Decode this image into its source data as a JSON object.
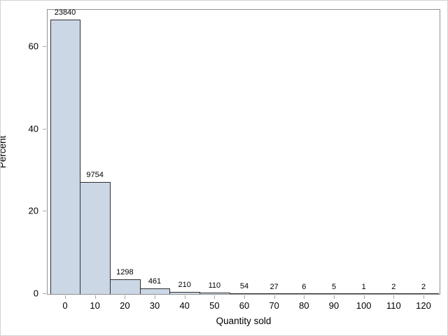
{
  "chart_data": {
    "type": "bar",
    "subtype": "histogram",
    "title": "",
    "xlabel": "Quantity sold",
    "ylabel": "Percent",
    "categories": [
      0,
      10,
      20,
      30,
      40,
      50,
      60,
      70,
      80,
      90,
      100,
      110,
      120
    ],
    "counts": [
      23840,
      9754,
      1298,
      461,
      210,
      110,
      54,
      27,
      6,
      5,
      1,
      2,
      2
    ],
    "count_labels": [
      "23840",
      "9754",
      "1298",
      "461",
      "210",
      "110",
      "54",
      "27",
      "6",
      "5",
      "1",
      "2",
      "2"
    ],
    "values_percent": [
      66.65,
      27.27,
      3.63,
      1.29,
      0.59,
      0.31,
      0.15,
      0.08,
      0.02,
      0.01,
      0.003,
      0.006,
      0.006
    ],
    "bin_width": 10,
    "x_tick_labels": [
      "0",
      "10",
      "20",
      "30",
      "40",
      "50",
      "60",
      "70",
      "80",
      "90",
      "100",
      "110",
      "120"
    ],
    "y_ticks": [
      0,
      20,
      40,
      60
    ],
    "y_tick_labels": [
      "0",
      "20",
      "40",
      "60"
    ],
    "ylim": [
      0,
      69.3
    ],
    "grid": "off",
    "legend": "none",
    "colors": {
      "bar_fill": "#ccd7e6",
      "bar_border": "#2e2e2e",
      "plot_frame": "#919191",
      "tick_mark": "#a6a6a6",
      "text": "#000000",
      "outer_border": "#d2d2d2",
      "background": "#ffffff"
    }
  }
}
